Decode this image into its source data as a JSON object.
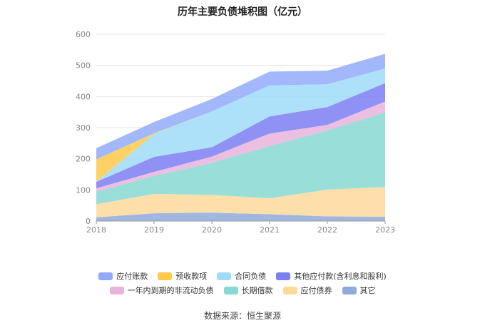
{
  "title": "历年主要负债堆积图（亿元）",
  "source": "数据来源：恒生聚源",
  "chart_data": {
    "type": "area",
    "stacked": true,
    "title": "历年主要负债堆积图（亿元）",
    "xlabel": "",
    "ylabel": "",
    "categories": [
      "2018",
      "2019",
      "2020",
      "2021",
      "2022",
      "2023"
    ],
    "ylim": [
      0,
      600
    ],
    "yticks": [
      0,
      100,
      200,
      300,
      400,
      500,
      600
    ],
    "grid": true,
    "legend_position": "bottom",
    "series": [
      {
        "name": "其它",
        "color": "#8faadc",
        "values": [
          12,
          25,
          27,
          22,
          15,
          14
        ]
      },
      {
        "name": "应付债券",
        "color": "#ffd99a",
        "values": [
          42,
          62,
          57,
          51,
          86,
          95
        ]
      },
      {
        "name": "长期借款",
        "color": "#88d8d4",
        "values": [
          40,
          58,
          103,
          168,
          190,
          240
        ]
      },
      {
        "name": "一年内到期的非流动负债",
        "color": "#e8b4dc",
        "values": [
          11,
          13,
          20,
          40,
          18,
          35
        ]
      },
      {
        "name": "其他应付款(含利息和股利)",
        "color": "#7b7ff2",
        "values": [
          21,
          48,
          30,
          55,
          57,
          59
        ]
      },
      {
        "name": "合同负债",
        "color": "#9fdcf8",
        "values": [
          0,
          74,
          115,
          100,
          73,
          47
        ]
      },
      {
        "name": "预收款项",
        "color": "#ffc94a",
        "values": [
          72,
          2,
          0,
          0,
          0,
          0
        ]
      },
      {
        "name": "应付账款",
        "color": "#93aafc",
        "values": [
          36,
          36,
          40,
          44,
          44,
          47
        ]
      }
    ]
  },
  "legend_rows": [
    [
      "应付账款",
      "预收款项",
      "合同负债",
      "其他应付款(含利息和股利)"
    ],
    [
      "一年内到期的非流动负债",
      "长期借款",
      "应付债券",
      "其它"
    ]
  ]
}
